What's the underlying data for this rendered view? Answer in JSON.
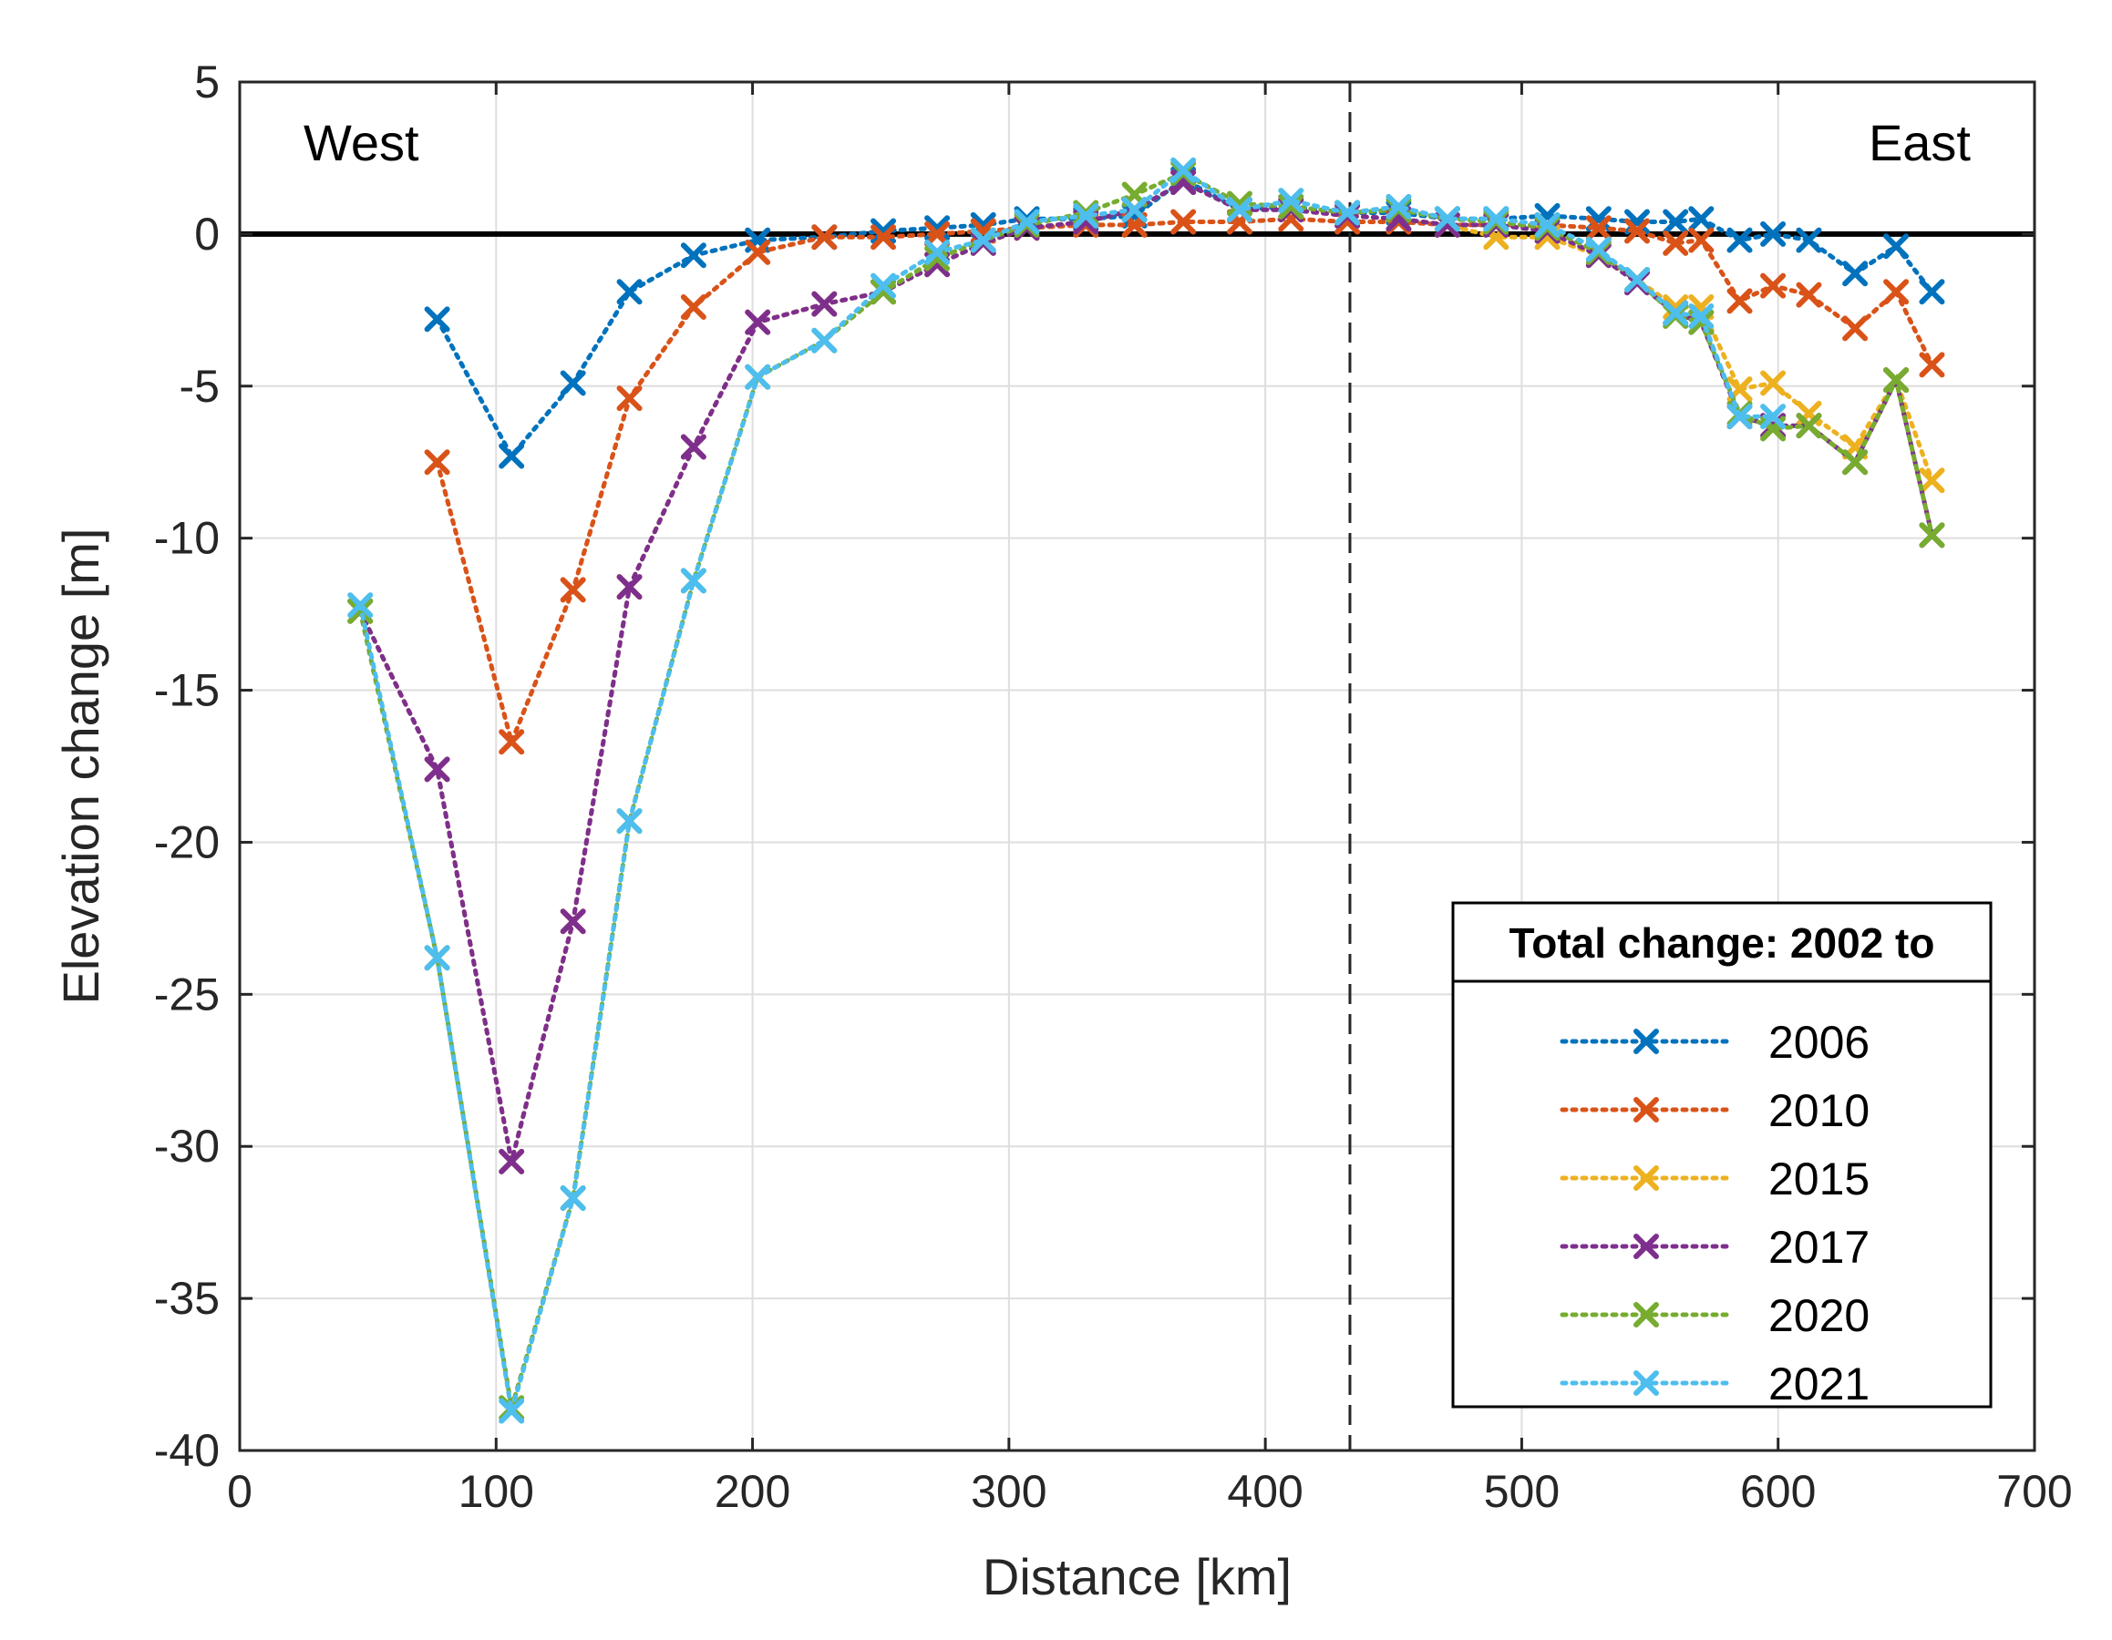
{
  "chart_data": {
    "type": "line",
    "xlabel": "Distance [km]",
    "ylabel": "Elevation change [m]",
    "xlim": [
      0,
      700
    ],
    "ylim": [
      -40,
      5
    ],
    "xticks": [
      0,
      100,
      200,
      300,
      400,
      500,
      600,
      700
    ],
    "yticks": [
      5,
      0,
      -5,
      -10,
      -15,
      -20,
      -25,
      -30,
      -35,
      -40
    ],
    "grid": true,
    "zero_line": 0,
    "divider_x": 433,
    "annotations": {
      "west": "West",
      "east": "East"
    },
    "legend": {
      "title": "Total change: 2002 to",
      "placement": "bottom-right"
    },
    "series": [
      {
        "name": "2006",
        "color": "#0072BD",
        "x": [
          77,
          106,
          130,
          152,
          177,
          202,
          228,
          251,
          272,
          290,
          307,
          330,
          349,
          368,
          390,
          410,
          432,
          452,
          471,
          490,
          510,
          530,
          545,
          560,
          570,
          585,
          598,
          612,
          630,
          646,
          660
        ],
        "y": [
          -2.8,
          -7.3,
          -4.9,
          -1.9,
          -0.7,
          -0.2,
          -0.1,
          0.1,
          0.2,
          0.3,
          0.5,
          0.5,
          0.6,
          1.8,
          0.8,
          0.9,
          0.7,
          0.7,
          0.5,
          0.5,
          0.6,
          0.5,
          0.4,
          0.4,
          0.5,
          -0.2,
          0.0,
          -0.2,
          -1.3,
          -0.4,
          -1.9
        ]
      },
      {
        "name": "2010",
        "color": "#D95319",
        "x": [
          77,
          106,
          130,
          152,
          177,
          202,
          228,
          251,
          272,
          290,
          307,
          330,
          349,
          368,
          390,
          410,
          432,
          452,
          471,
          490,
          510,
          530,
          545,
          560,
          570,
          585,
          598,
          612,
          630,
          646,
          660
        ],
        "y": [
          -7.5,
          -16.7,
          -11.7,
          -5.4,
          -2.4,
          -0.6,
          -0.1,
          -0.1,
          0.0,
          0.1,
          0.2,
          0.3,
          0.3,
          0.4,
          0.4,
          0.5,
          0.4,
          0.4,
          0.3,
          0.3,
          0.3,
          0.2,
          0.1,
          -0.3,
          -0.2,
          -2.2,
          -1.7,
          -2.0,
          -3.1,
          -1.9,
          -4.3
        ]
      },
      {
        "name": "2015",
        "color": "#EDB120",
        "x": [
          47,
          77,
          106,
          130,
          152,
          177,
          202,
          228,
          251,
          272,
          290,
          307,
          330,
          349,
          368,
          390,
          410,
          432,
          452,
          471,
          490,
          510,
          530,
          545,
          560,
          570,
          585,
          598,
          612,
          630,
          646,
          660
        ],
        "y": [
          -12.4,
          -17.6,
          -30.5,
          -22.6,
          -11.6,
          -7.0,
          -2.9,
          -2.3,
          -1.9,
          -1.0,
          -0.3,
          0.2,
          0.4,
          0.8,
          1.7,
          0.8,
          0.8,
          0.6,
          0.5,
          0.3,
          -0.1,
          -0.1,
          -0.7,
          -1.5,
          -2.4,
          -2.4,
          -5.1,
          -4.9,
          -5.9,
          -7.0,
          -4.8,
          -8.1
        ]
      },
      {
        "name": "2017",
        "color": "#7E2F8E",
        "x": [
          47,
          77,
          106,
          130,
          152,
          177,
          202,
          228,
          251,
          272,
          290,
          307,
          330,
          349,
          368,
          390,
          410,
          432,
          452,
          471,
          490,
          510,
          530,
          545,
          560,
          570,
          585,
          598,
          612,
          630,
          646,
          660
        ],
        "y": [
          -12.4,
          -17.6,
          -30.5,
          -22.6,
          -11.6,
          -7.0,
          -2.9,
          -2.3,
          -1.9,
          -1.0,
          -0.3,
          0.2,
          0.4,
          0.8,
          1.7,
          0.8,
          0.8,
          0.6,
          0.5,
          0.3,
          0.3,
          0.1,
          -0.7,
          -1.6,
          -2.6,
          -2.9,
          -6.0,
          -6.3,
          -6.3,
          -7.5,
          -4.8,
          -9.9
        ]
      },
      {
        "name": "2020",
        "color": "#77AC30",
        "x": [
          47,
          77,
          106,
          130,
          152,
          177,
          202,
          228,
          251,
          272,
          290,
          307,
          330,
          349,
          368,
          390,
          410,
          432,
          452,
          471,
          490,
          510,
          530,
          545,
          560,
          570,
          585,
          598,
          612,
          630,
          646,
          660
        ],
        "y": [
          -12.4,
          -23.8,
          -38.6,
          -31.7,
          -19.3,
          -11.4,
          -4.7,
          -3.5,
          -1.9,
          -0.8,
          -0.2,
          0.3,
          0.7,
          1.3,
          2.0,
          1.0,
          0.9,
          0.7,
          0.8,
          0.5,
          0.4,
          0.2,
          -0.6,
          -1.5,
          -2.7,
          -2.9,
          -5.9,
          -6.4,
          -6.3,
          -7.5,
          -4.8,
          -9.9
        ]
      },
      {
        "name": "2021",
        "color": "#4DBEEE",
        "x": [
          47,
          77,
          106,
          130,
          152,
          177,
          202,
          228,
          251,
          272,
          290,
          307,
          330,
          349,
          368,
          390,
          410,
          432,
          452,
          471,
          490,
          510,
          530,
          545,
          560,
          570,
          585,
          598
        ],
        "y": [
          -12.2,
          -23.8,
          -38.7,
          -31.7,
          -19.3,
          -11.4,
          -4.7,
          -3.5,
          -1.7,
          -0.6,
          -0.2,
          0.4,
          0.6,
          0.8,
          2.1,
          0.8,
          1.1,
          0.7,
          0.9,
          0.5,
          0.5,
          0.3,
          -0.5,
          -1.5,
          -2.6,
          -2.7,
          -6.0,
          -6.0
        ]
      }
    ]
  }
}
